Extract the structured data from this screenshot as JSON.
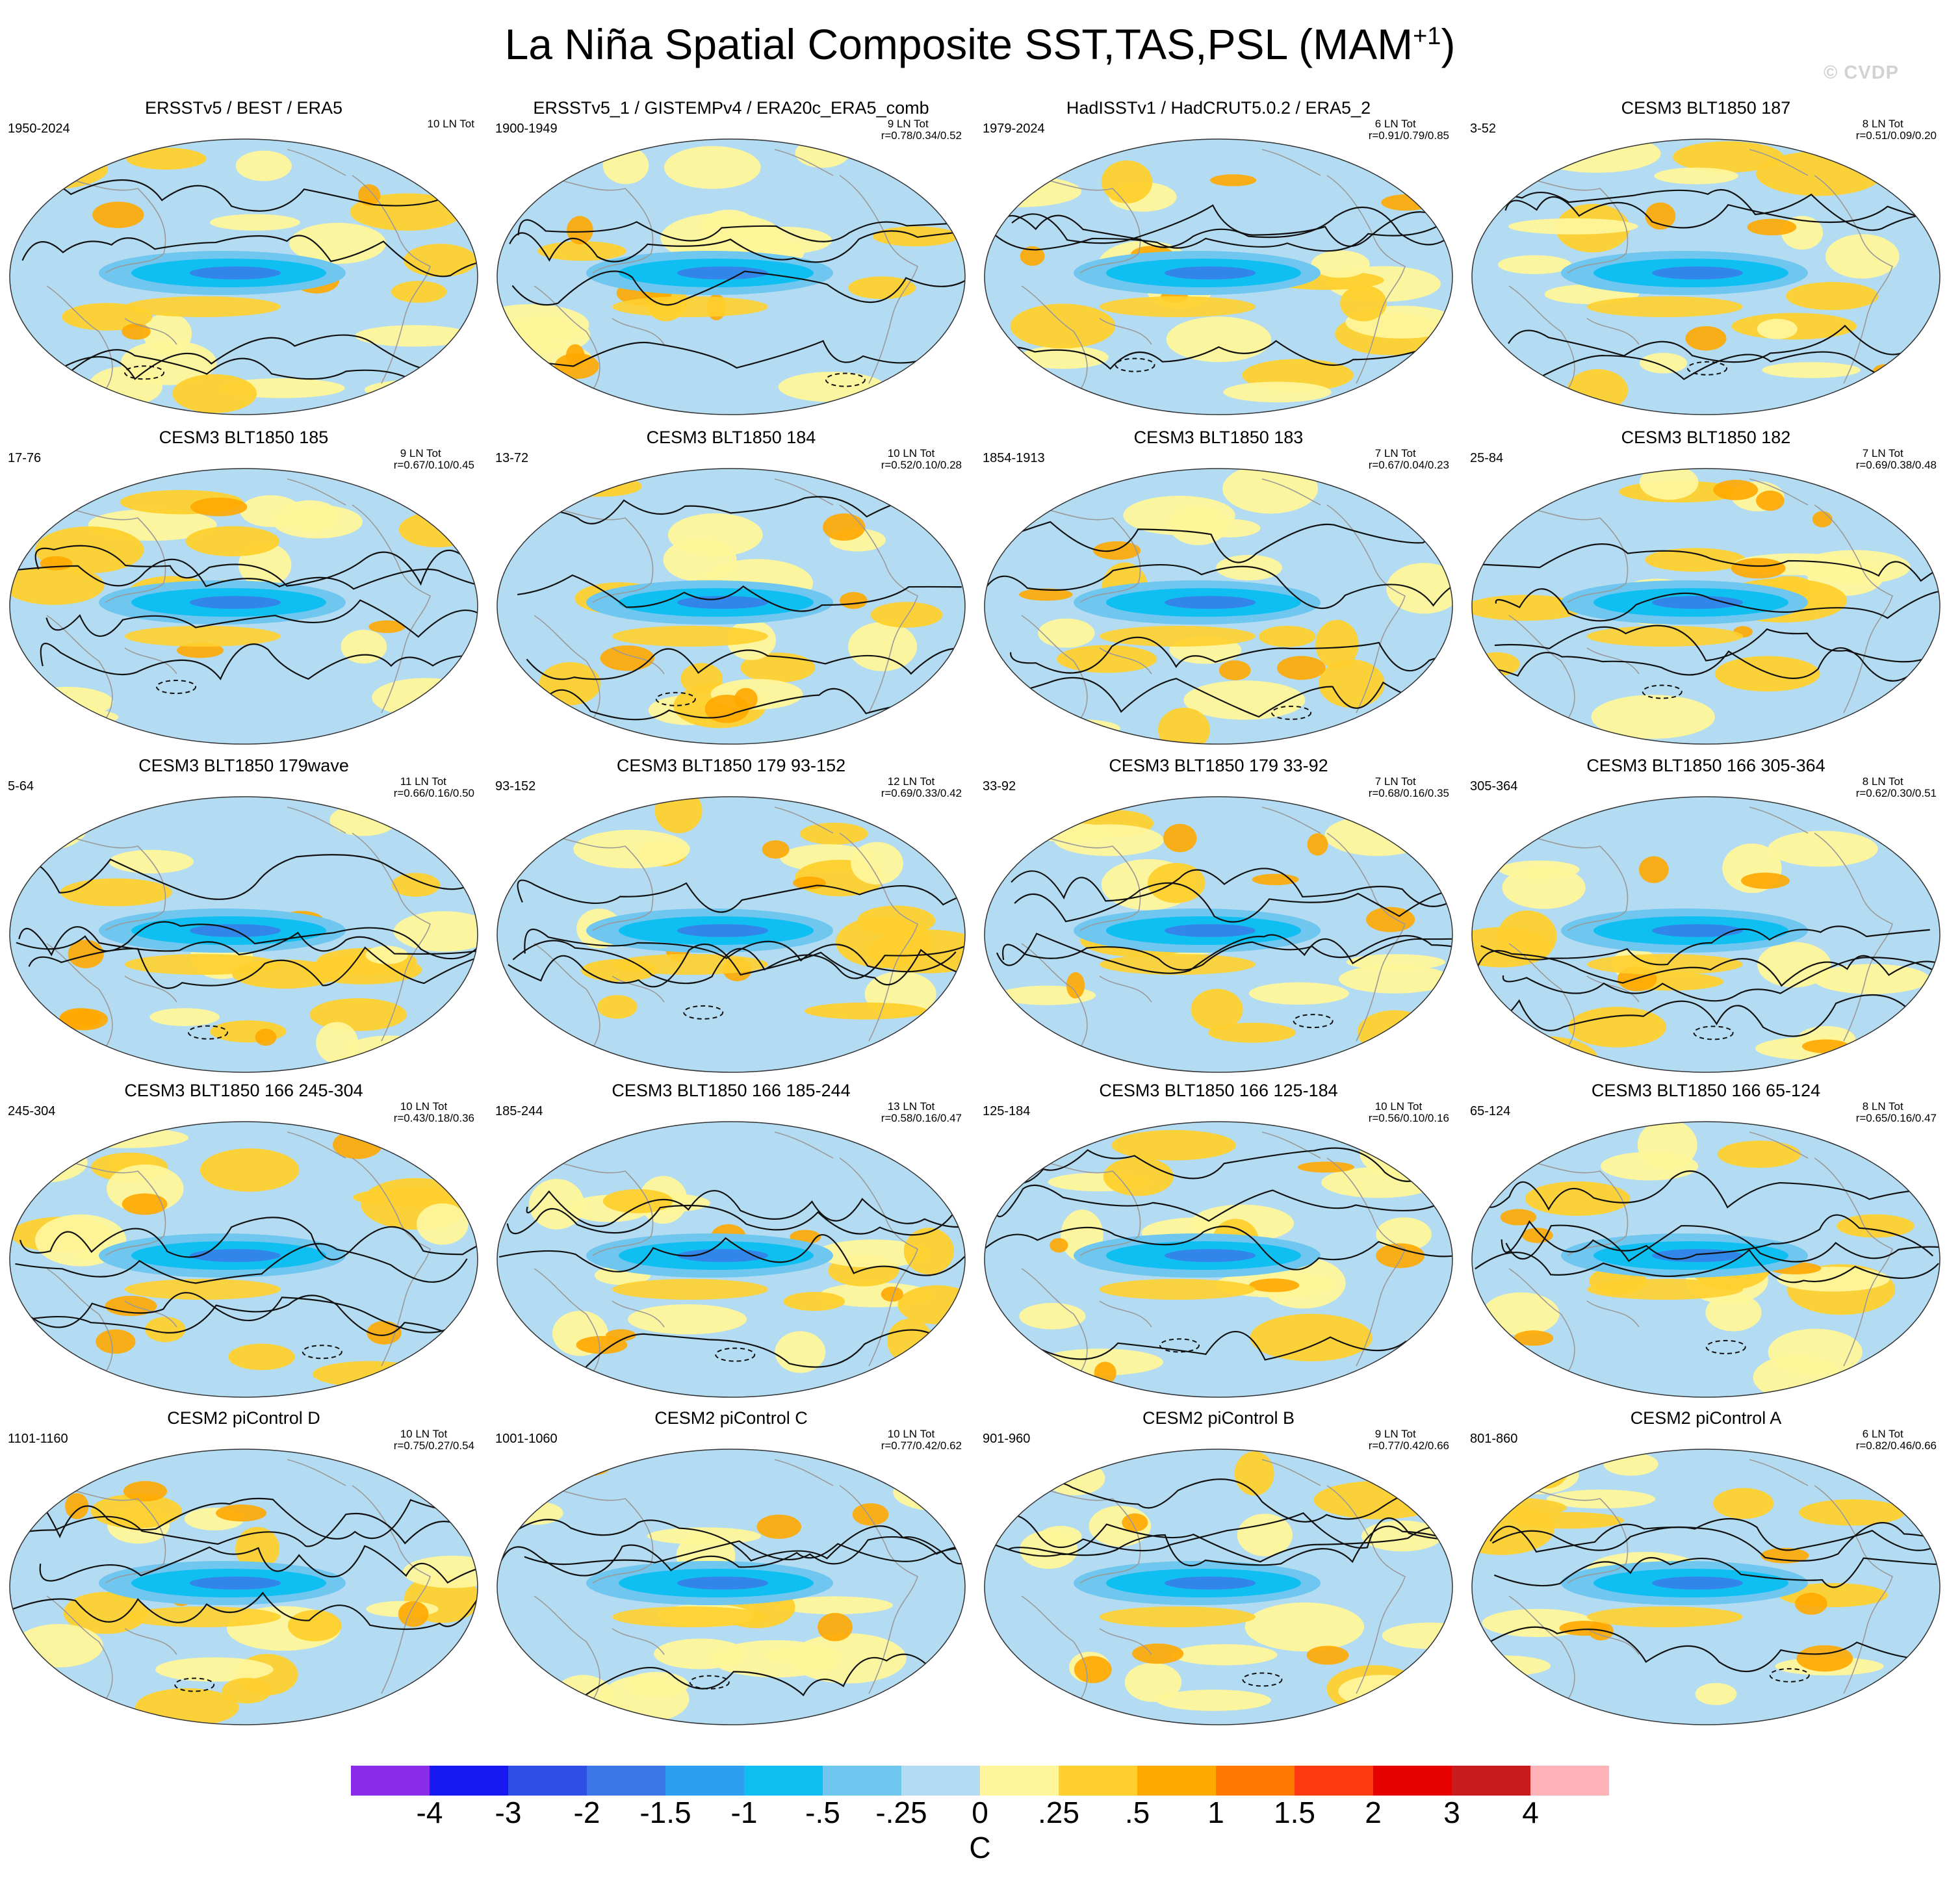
{
  "title": {
    "main": "La Niña Spatial Composite SST,TAS,PSL (MAM",
    "sup": "+1",
    "close": ")"
  },
  "watermark": "© CVDP",
  "panels": [
    {
      "title": "ERSSTv5 / BEST / ERA5",
      "years": "1950-2024",
      "count": "10 LN Tot",
      "corr": ""
    },
    {
      "title": "ERSSTv5_1 / GISTEMPv4 / ERA20c_ERA5_comb",
      "years": "1900-1949",
      "count": "9 LN Tot",
      "corr": "r=0.78/0.34/0.52"
    },
    {
      "title": "HadISSTv1 / HadCRUT5.0.2 / ERA5_2",
      "years": "1979-2024",
      "count": "6 LN Tot",
      "corr": "r=0.91/0.79/0.85"
    },
    {
      "title": "CESM3 BLT1850 187",
      "years": "3-52",
      "count": "8 LN Tot",
      "corr": "r=0.51/0.09/0.20"
    },
    {
      "title": "CESM3 BLT1850 185",
      "years": "17-76",
      "count": "9 LN Tot",
      "corr": "r=0.67/0.10/0.45"
    },
    {
      "title": "CESM3 BLT1850 184",
      "years": "13-72",
      "count": "10 LN Tot",
      "corr": "r=0.52/0.10/0.28"
    },
    {
      "title": "CESM3 BLT1850 183",
      "years": "1854-1913",
      "count": "7 LN Tot",
      "corr": "r=0.67/0.04/0.23"
    },
    {
      "title": "CESM3 BLT1850 182",
      "years": "25-84",
      "count": "7 LN Tot",
      "corr": "r=0.69/0.38/0.48"
    },
    {
      "title": "CESM3 BLT1850 179wave",
      "years": "5-64",
      "count": "11 LN Tot",
      "corr": "r=0.66/0.16/0.50"
    },
    {
      "title": "CESM3 BLT1850 179 93-152",
      "years": "93-152",
      "count": "12 LN Tot",
      "corr": "r=0.69/0.33/0.42"
    },
    {
      "title": "CESM3 BLT1850 179 33-92",
      "years": "33-92",
      "count": "7 LN Tot",
      "corr": "r=0.68/0.16/0.35"
    },
    {
      "title": "CESM3 BLT1850 166 305-364",
      "years": "305-364",
      "count": "8 LN Tot",
      "corr": "r=0.62/0.30/0.51"
    },
    {
      "title": "CESM3 BLT1850 166 245-304",
      "years": "245-304",
      "count": "10 LN Tot",
      "corr": "r=0.43/0.18/0.36"
    },
    {
      "title": "CESM3 BLT1850 166 185-244",
      "years": "185-244",
      "count": "13 LN Tot",
      "corr": "r=0.58/0.16/0.47"
    },
    {
      "title": "CESM3 BLT1850 166 125-184",
      "years": "125-184",
      "count": "10 LN Tot",
      "corr": "r=0.56/0.10/0.16"
    },
    {
      "title": "CESM3 BLT1850 166 65-124",
      "years": "65-124",
      "count": "8 LN Tot",
      "corr": "r=0.65/0.16/0.47"
    },
    {
      "title": "CESM2 piControl D",
      "years": "1101-1160",
      "count": "10 LN Tot",
      "corr": "r=0.75/0.27/0.54"
    },
    {
      "title": "CESM2 piControl C",
      "years": "1001-1060",
      "count": "10 LN Tot",
      "corr": "r=0.77/0.42/0.62"
    },
    {
      "title": "CESM2 piControl B",
      "years": "901-960",
      "count": "9 LN Tot",
      "corr": "r=0.77/0.42/0.66"
    },
    {
      "title": "CESM2 piControl A",
      "years": "801-860",
      "count": "6 LN Tot",
      "corr": "r=0.82/0.46/0.66"
    }
  ],
  "colorbar": {
    "colors": [
      "#8a2be8",
      "#1818f0",
      "#2f4fe4",
      "#3b78e6",
      "#2e9ff0",
      "#10bff2",
      "#6fc6ee",
      "#b3dcf2",
      "#fff59a",
      "#ffd02e",
      "#ffa800",
      "#ff7a00",
      "#ff3a10",
      "#e60000",
      "#c81c1c",
      "#ffb3b8"
    ],
    "labels": [
      "-4",
      "-3",
      "-2",
      "-1.5",
      "-1",
      "-.5",
      "-.25",
      "0",
      ".25",
      ".5",
      "1",
      "1.5",
      "2",
      "3",
      "4"
    ],
    "units": "C"
  },
  "map_colors": {
    "ocean_background": "#b3dcf2",
    "cool": "#6fc6ee",
    "cold": "#10bff2",
    "coldest": "#3b78e6",
    "warm": "#fff59a",
    "warmer": "#ffd02e",
    "hot": "#ffa800",
    "coast": "#9a9a9a",
    "contour": "#111111"
  }
}
